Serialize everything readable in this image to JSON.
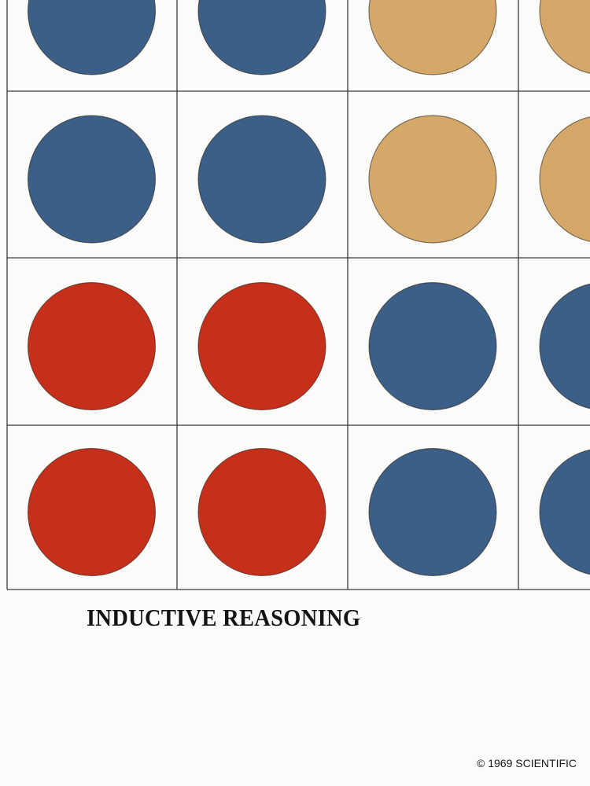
{
  "caption": "INDUCTIVE REASONING",
  "copyright": "© 1969 SCIENTIFIC",
  "colors": {
    "blue": "#3b5f86",
    "tan": "#d3a868",
    "red": "#c6301a",
    "grid_line": "#3a3a3a",
    "cell_background": "#fbfbf9"
  },
  "grid": {
    "rows": [
      [
        "blue",
        "blue",
        "tan",
        "tan"
      ],
      [
        "blue",
        "blue",
        "tan",
        "tan"
      ],
      [
        "red",
        "red",
        "blue",
        "blue"
      ],
      [
        "red",
        "red",
        "blue",
        "blue"
      ]
    ]
  }
}
